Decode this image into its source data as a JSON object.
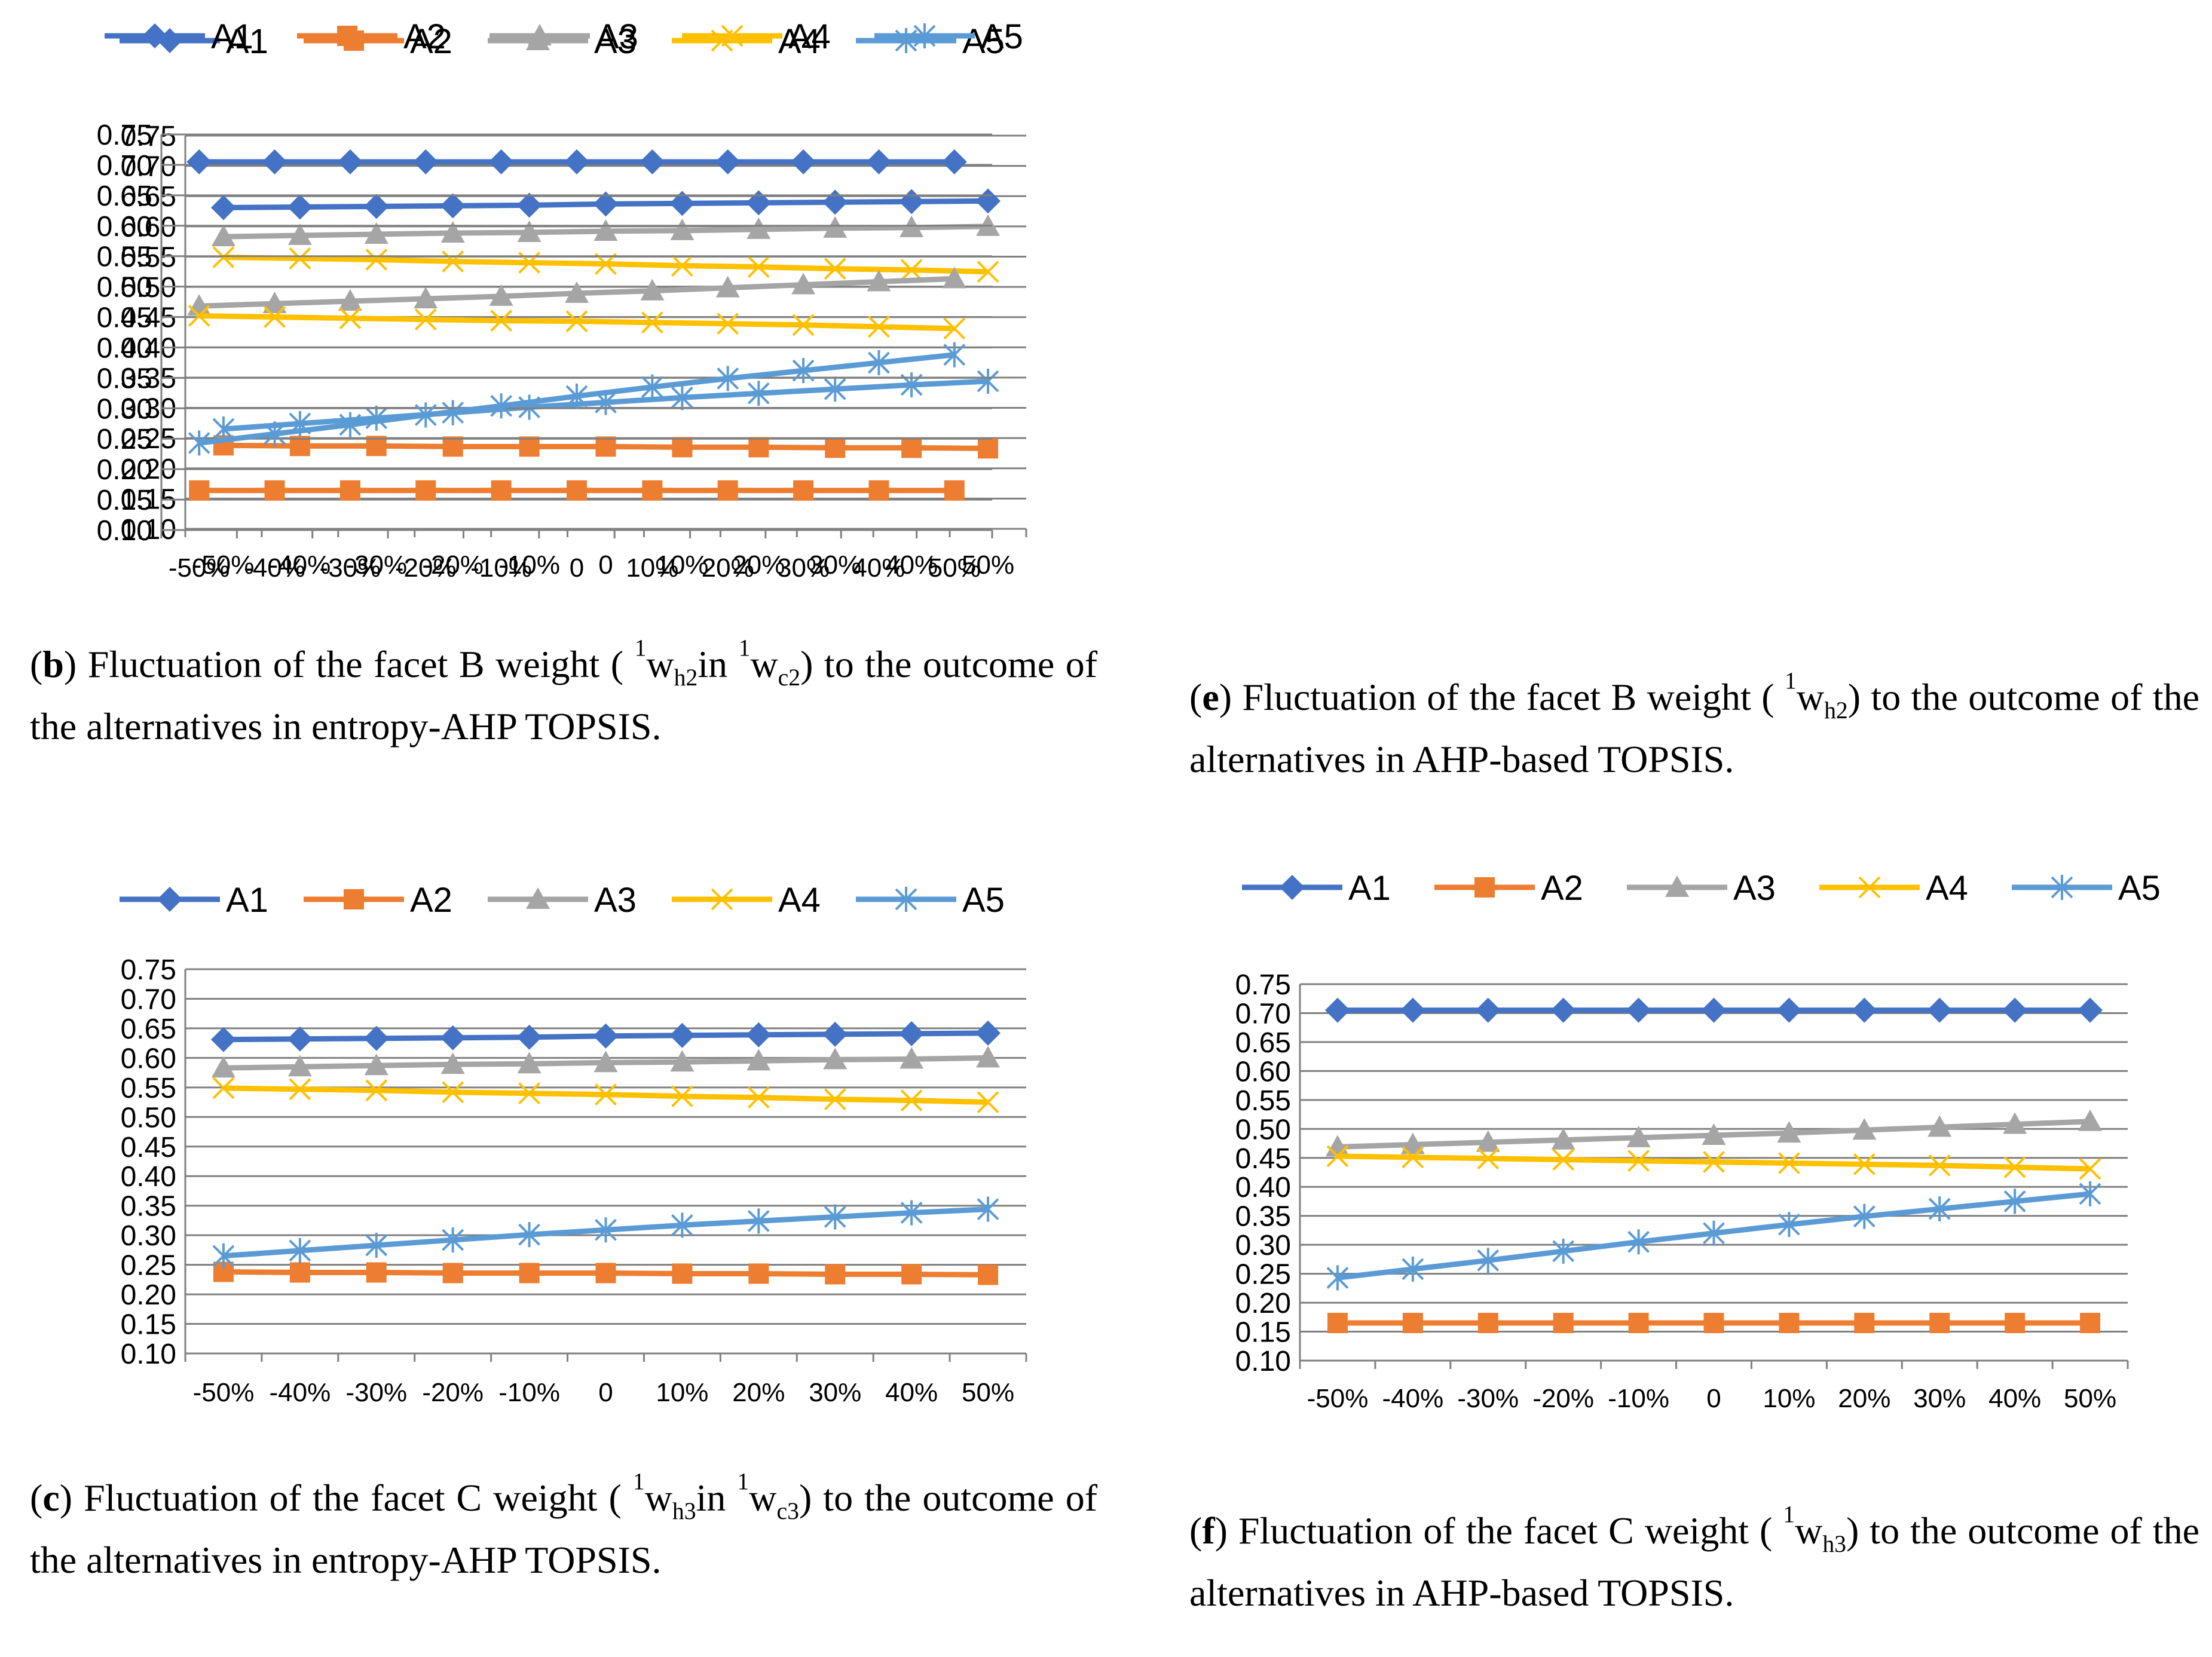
{
  "legend": [
    "A1",
    "A2",
    "A3",
    "A4",
    "A5"
  ],
  "colors": {
    "A1": "#4472C4",
    "A2": "#ED7D31",
    "A3": "#A5A5A5",
    "A4": "#FFC000",
    "A5": "#5B9BD5",
    "grid": "#808080"
  },
  "markers": {
    "A1": "diamond",
    "A2": "square",
    "A3": "triangle",
    "A4": "x",
    "A5": "asterisk"
  },
  "captions": [
    {
      "letter": "b",
      "text1": "Fluctuation of the facet B weight ( ",
      "sup1": "1",
      "w1": "w",
      "sub1": "h2",
      "mid": "in ",
      "sup2": "1",
      "w2": "w",
      "sub2": "c2",
      "text2": ") to the outcome of the alternatives in entropy-AHP TOPSIS."
    },
    {
      "letter": "e",
      "text1": "Fluctuation of the facet B weight ( ",
      "sup1": "1",
      "w1": "w",
      "sub1": "h2",
      "text2": ")  to the outcome of the alternatives in AHP-based TOPSIS."
    },
    {
      "letter": "c",
      "text1": "Fluctuation of the facet C weight ( ",
      "sup1": "1",
      "w1": "w",
      "sub1": "h3",
      "mid": "in ",
      "sup2": "1",
      "w2": "w",
      "sub2": "c3",
      "text2": ") to the outcome of the alternatives in entropy-AHP TOPSIS."
    },
    {
      "letter": "f",
      "text1": "Fluctuation of the facet C weight ( ",
      "sup1": "1",
      "w1": "w",
      "sub1": "h3",
      "text2": ")  to the outcome of the alternatives in AHP-based TOPSIS."
    }
  ],
  "chart_data": [
    {
      "type": "line",
      "panel": "b",
      "categories": [
        "-50%",
        "-40%",
        "-30%",
        "-20%",
        "-10%",
        "0",
        "10%",
        "20%",
        "30%",
        "40%",
        "50%"
      ],
      "ylim": [
        0.1,
        0.75
      ],
      "yticks": [
        "0.10",
        "0.15",
        "0.20",
        "0.25",
        "0.30",
        "0.35",
        "0.40",
        "0.45",
        "0.50",
        "0.55",
        "0.60",
        "0.65",
        "0.70",
        "0.75"
      ],
      "grid": true,
      "legend_position": "top",
      "series": [
        {
          "name": "A1",
          "values": [
            0.631,
            0.632,
            0.633,
            0.634,
            0.635,
            0.637,
            0.638,
            0.639,
            0.64,
            0.641,
            0.642
          ]
        },
        {
          "name": "A2",
          "values": [
            0.238,
            0.237,
            0.237,
            0.236,
            0.236,
            0.236,
            0.235,
            0.235,
            0.234,
            0.234,
            0.233
          ]
        },
        {
          "name": "A3",
          "values": [
            0.583,
            0.585,
            0.587,
            0.589,
            0.59,
            0.592,
            0.593,
            0.595,
            0.597,
            0.598,
            0.6
          ]
        },
        {
          "name": "A4",
          "values": [
            0.549,
            0.547,
            0.545,
            0.542,
            0.54,
            0.538,
            0.535,
            0.533,
            0.53,
            0.528,
            0.525
          ]
        },
        {
          "name": "A5",
          "values": [
            0.265,
            0.274,
            0.283,
            0.292,
            0.301,
            0.309,
            0.317,
            0.324,
            0.331,
            0.338,
            0.344
          ]
        }
      ]
    },
    {
      "type": "line",
      "panel": "e",
      "categories": [
        "-50%",
        "-40%",
        "-30%",
        "-20%",
        "-10%",
        "0",
        "10%",
        "20%",
        "30%",
        "40%",
        "50%"
      ],
      "ylim": [
        0.1,
        0.75
      ],
      "yticks": [
        "0.10",
        "0.15",
        "0.20",
        "0.25",
        "0.30",
        "0.35",
        "0.40",
        "0.45",
        "0.50",
        "0.55",
        "0.60",
        "0.65",
        "0.70",
        "0.75"
      ],
      "grid": true,
      "legend_position": "top",
      "series": [
        {
          "name": "A1",
          "values": [
            0.705,
            0.705,
            0.705,
            0.705,
            0.705,
            0.705,
            0.705,
            0.705,
            0.705,
            0.705,
            0.705
          ]
        },
        {
          "name": "A2",
          "values": [
            0.165,
            0.165,
            0.165,
            0.165,
            0.165,
            0.165,
            0.165,
            0.165,
            0.165,
            0.165,
            0.165
          ]
        },
        {
          "name": "A3",
          "values": [
            0.468,
            0.472,
            0.476,
            0.48,
            0.484,
            0.489,
            0.493,
            0.498,
            0.503,
            0.508,
            0.513
          ]
        },
        {
          "name": "A4",
          "values": [
            0.452,
            0.45,
            0.448,
            0.446,
            0.444,
            0.443,
            0.441,
            0.439,
            0.437,
            0.434,
            0.431
          ]
        },
        {
          "name": "A5",
          "values": [
            0.243,
            0.258,
            0.273,
            0.289,
            0.304,
            0.32,
            0.335,
            0.349,
            0.362,
            0.375,
            0.388
          ]
        }
      ]
    },
    {
      "type": "line",
      "panel": "c",
      "categories": [
        "-50%",
        "-40%",
        "-30%",
        "-20%",
        "-10%",
        "0",
        "10%",
        "20%",
        "30%",
        "40%",
        "50%"
      ],
      "ylim": [
        0.1,
        0.75
      ],
      "yticks": [
        "0.10",
        "0.15",
        "0.20",
        "0.25",
        "0.30",
        "0.35",
        "0.40",
        "0.45",
        "0.50",
        "0.55",
        "0.60",
        "0.65",
        "0.70",
        "0.75"
      ],
      "grid": true,
      "legend_position": "top",
      "series": [
        {
          "name": "A1",
          "values": [
            0.631,
            0.632,
            0.633,
            0.634,
            0.635,
            0.637,
            0.638,
            0.639,
            0.64,
            0.641,
            0.642
          ]
        },
        {
          "name": "A2",
          "values": [
            0.238,
            0.237,
            0.237,
            0.236,
            0.236,
            0.236,
            0.235,
            0.235,
            0.234,
            0.234,
            0.233
          ]
        },
        {
          "name": "A3",
          "values": [
            0.583,
            0.585,
            0.587,
            0.589,
            0.59,
            0.592,
            0.593,
            0.595,
            0.597,
            0.598,
            0.6
          ]
        },
        {
          "name": "A4",
          "values": [
            0.549,
            0.547,
            0.545,
            0.542,
            0.54,
            0.538,
            0.535,
            0.533,
            0.53,
            0.528,
            0.525
          ]
        },
        {
          "name": "A5",
          "values": [
            0.265,
            0.274,
            0.283,
            0.292,
            0.301,
            0.309,
            0.317,
            0.324,
            0.331,
            0.338,
            0.344
          ]
        }
      ]
    },
    {
      "type": "line",
      "panel": "f",
      "categories": [
        "-50%",
        "-40%",
        "-30%",
        "-20%",
        "-10%",
        "0",
        "10%",
        "20%",
        "30%",
        "40%",
        "50%"
      ],
      "ylim": [
        0.1,
        0.75
      ],
      "yticks": [
        "0.10",
        "0.15",
        "0.20",
        "0.25",
        "0.30",
        "0.35",
        "0.40",
        "0.45",
        "0.50",
        "0.55",
        "0.60",
        "0.65",
        "0.70",
        "0.75"
      ],
      "grid": true,
      "legend_position": "top",
      "series": [
        {
          "name": "A1",
          "values": [
            0.705,
            0.705,
            0.705,
            0.705,
            0.705,
            0.705,
            0.705,
            0.705,
            0.705,
            0.705,
            0.705
          ]
        },
        {
          "name": "A2",
          "values": [
            0.165,
            0.165,
            0.165,
            0.165,
            0.165,
            0.165,
            0.165,
            0.165,
            0.165,
            0.165,
            0.165
          ]
        },
        {
          "name": "A3",
          "values": [
            0.469,
            0.473,
            0.477,
            0.481,
            0.485,
            0.489,
            0.493,
            0.498,
            0.503,
            0.508,
            0.513
          ]
        },
        {
          "name": "A4",
          "values": [
            0.453,
            0.451,
            0.449,
            0.447,
            0.445,
            0.443,
            0.441,
            0.439,
            0.437,
            0.434,
            0.431
          ]
        },
        {
          "name": "A5",
          "values": [
            0.243,
            0.258,
            0.273,
            0.289,
            0.305,
            0.32,
            0.335,
            0.349,
            0.362,
            0.375,
            0.388
          ]
        }
      ]
    }
  ]
}
